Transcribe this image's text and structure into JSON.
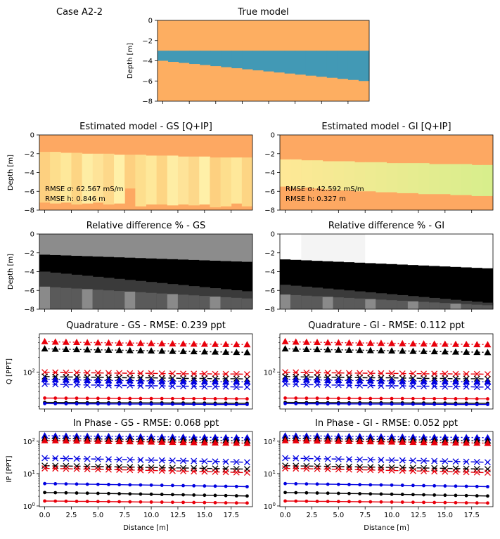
{
  "case_label": "Case A2-2",
  "colors": {
    "orange": "#fdae61",
    "blue": "#4299b5",
    "red": "#e8000b",
    "black": "#000000",
    "bluecurve": "#0000e0"
  },
  "chart_data": [
    {
      "id": "true",
      "type": "heatmap",
      "title": "True model",
      "ylabel": "Depth [m]",
      "yticks": [
        "0",
        "−2",
        "−4",
        "−6",
        "−8"
      ],
      "ylim": [
        -8,
        0
      ],
      "xlim": [
        -0.5,
        19.5
      ],
      "layer_top": -3.0,
      "layer_bottom_start": -4.0,
      "layer_bottom_end": -6.0
    },
    {
      "id": "gs-est",
      "type": "heatmap",
      "title": "Estimated model - GS [Q+IP]",
      "ylabel": "Depth [m]",
      "yticks": [
        "0",
        "−2",
        "−4",
        "−6",
        "−8"
      ],
      "rmse_sigma": "RMSE σ: 62.567 mS/m",
      "rmse_h": "RMSE h: 0.846 m",
      "layer_top": [
        -1.8,
        -1.8,
        -1.9,
        -1.9,
        -2.0,
        -2.0,
        -2.0,
        -2.1,
        -2.1,
        -2.1,
        -2.2,
        -2.2,
        -2.2,
        -2.3,
        -2.3,
        -2.3,
        -2.4,
        -2.4,
        -2.4,
        -2.4
      ],
      "layer_bottom": [
        -7.2,
        -7.3,
        -7.2,
        -7.4,
        -7.3,
        -7.2,
        -7.4,
        -7.3,
        -5.7,
        -7.6,
        -7.4,
        -7.4,
        -7.5,
        -7.4,
        -7.5,
        -7.4,
        -7.7,
        -7.6,
        -7.3,
        -7.6
      ]
    },
    {
      "id": "gi-est",
      "type": "heatmap",
      "title": "Estimated model - GI [Q+IP]",
      "rmse_sigma": "RMSE σ: 42.592 mS/m",
      "rmse_h": "RMSE h: 0.327 m",
      "layer_top": [
        -2.6,
        -2.6,
        -2.7,
        -2.7,
        -2.8,
        -2.8,
        -2.8,
        -2.9,
        -2.9,
        -2.9,
        -3.0,
        -3.0,
        -3.0,
        -3.0,
        -3.1,
        -3.1,
        -3.1,
        -3.1,
        -3.2,
        -3.2
      ],
      "layer_bottom": [
        -5.5,
        -5.7,
        -5.6,
        -5.7,
        -5.8,
        -5.9,
        -5.9,
        -6.0,
        -6.0,
        -6.1,
        -6.1,
        -6.2,
        -6.2,
        -6.3,
        -6.3,
        -6.3,
        -6.4,
        -6.4,
        -6.5,
        -6.5
      ]
    },
    {
      "id": "gs-diff",
      "type": "heatmap",
      "title": "Relative difference % - GS",
      "ylabel": "Depth [m]",
      "yticks": [
        "0",
        "−2",
        "−4",
        "−6",
        "−8"
      ]
    },
    {
      "id": "gi-diff",
      "type": "heatmap",
      "title": "Relative difference % - GI"
    },
    {
      "id": "gs-q",
      "type": "line",
      "title": "Quadrature - GS - RMSE: 0.239 ppt",
      "ylabel": "Q [PPT]",
      "yscale": "log",
      "ylim": [
        18,
        600
      ],
      "ytick_value": 100,
      "ytick_label": "10",
      "ytick_exp": "2"
    },
    {
      "id": "gi-q",
      "type": "line",
      "title": "Quadrature - GI - RMSE: 0.112 ppt",
      "yscale": "log",
      "ylim": [
        18,
        600
      ],
      "ytick_value": 100,
      "ytick_label": "10",
      "ytick_exp": "2"
    },
    {
      "id": "gs-ip",
      "type": "line",
      "title": "In Phase - GS - RMSE: 0.068 ppt",
      "ylabel": "IP [PPT]",
      "xlabel": "Distance [m]",
      "yscale": "log",
      "ylim": [
        0.95,
        200
      ],
      "yticks": [
        {
          "v": 1,
          "b": "10",
          "e": "0"
        },
        {
          "v": 10,
          "b": "10",
          "e": "1"
        },
        {
          "v": 100,
          "b": "10",
          "e": "2"
        }
      ]
    },
    {
      "id": "gi-ip",
      "type": "line",
      "title": "In Phase - GI - RMSE: 0.052 ppt",
      "xlabel": "Distance [m]",
      "yscale": "log",
      "ylim": [
        0.95,
        200
      ],
      "yticks": [
        {
          "v": 1,
          "b": "10",
          "e": "0"
        },
        {
          "v": 10,
          "b": "10",
          "e": "1"
        },
        {
          "v": 100,
          "b": "10",
          "e": "2"
        }
      ]
    }
  ],
  "x_axis": {
    "xlim": [
      -0.5,
      19.5
    ],
    "ticks": [
      0,
      2.5,
      5,
      7.5,
      10,
      12.5,
      15,
      17.5
    ],
    "labels": [
      "0.0",
      "2.5",
      "5.0",
      "7.5",
      "10.0",
      "12.5",
      "15.0",
      "17.5"
    ]
  },
  "q_series": {
    "x": [
      0,
      1,
      2,
      3,
      4,
      5,
      6,
      7,
      8,
      9,
      10,
      11,
      12,
      13,
      14,
      15,
      16,
      17,
      18,
      19
    ],
    "red_triangle": [
      420,
      412,
      408,
      405,
      400,
      398,
      395,
      392,
      390,
      388,
      385,
      383,
      380,
      378,
      375,
      373,
      370,
      368,
      366,
      364
    ],
    "black_triangle": [
      300,
      295,
      292,
      290,
      287,
      284,
      282,
      280,
      277,
      275,
      272,
      270,
      268,
      266,
      263,
      261,
      259,
      257,
      255,
      253
    ],
    "red_x": [
      100,
      99,
      98,
      98,
      97,
      97,
      96,
      96,
      95,
      95,
      95,
      94,
      94,
      93,
      93,
      93,
      92,
      92,
      92,
      91
    ],
    "black_x": [
      82,
      81,
      80,
      80,
      79,
      79,
      78,
      78,
      77,
      77,
      77,
      76,
      76,
      75,
      75,
      75,
      74,
      74,
      74,
      73
    ],
    "blue_triangle": [
      72,
      71,
      70,
      70,
      69,
      69,
      68,
      68,
      68,
      67,
      67,
      66,
      66,
      66,
      65,
      65,
      65,
      64,
      64,
      64
    ],
    "blue_x": [
      58,
      57,
      56,
      56,
      55,
      55,
      54,
      54,
      54,
      53,
      53,
      53,
      52,
      52,
      52,
      51,
      51,
      51,
      50,
      50
    ],
    "red_dot": [
      30,
      29.9,
      29.8,
      29.8,
      29.7,
      29.6,
      29.6,
      29.5,
      29.4,
      29.4,
      29.3,
      29.3,
      29.2,
      29.2,
      29.1,
      29.1,
      29,
      29,
      28.9,
      28.9
    ],
    "black_dot": [
      24.5,
      24.4,
      24.3,
      24.3,
      24.2,
      24.2,
      24.1,
      24.1,
      24,
      24,
      23.9,
      23.9,
      23.8,
      23.8,
      23.7,
      23.7,
      23.6,
      23.6,
      23.5,
      23.5
    ],
    "blue_dot": [
      23.2,
      23.1,
      23,
      23,
      22.9,
      22.9,
      22.8,
      22.8,
      22.7,
      22.7,
      22.6,
      22.6,
      22.5,
      22.5,
      22.4,
      22.4,
      22.3,
      22.3,
      22.2,
      22.2
    ]
  },
  "ip_series": {
    "x": [
      0,
      1,
      2,
      3,
      4,
      5,
      6,
      7,
      8,
      9,
      10,
      11,
      12,
      13,
      14,
      15,
      16,
      17,
      18,
      19
    ],
    "blue_triangle": [
      148,
      147,
      146,
      145,
      144,
      143,
      142,
      141,
      140,
      139,
      138,
      137,
      136,
      135,
      134,
      133,
      132,
      131,
      130,
      129
    ],
    "black_triangle": [
      122,
      121,
      120,
      119,
      118,
      117,
      116,
      115,
      114,
      113,
      112,
      111,
      110,
      109,
      108,
      107,
      106,
      105,
      104,
      103
    ],
    "red_triangle": [
      106,
      105,
      104,
      103,
      102,
      101,
      100,
      99,
      98,
      97,
      96,
      95,
      94,
      93,
      92,
      91,
      90,
      89,
      88,
      87
    ],
    "blue_x": [
      30,
      29.6,
      29.2,
      28.8,
      28.4,
      28,
      27.6,
      27.2,
      26.8,
      26.4,
      26,
      25.6,
      25.2,
      24.8,
      24.4,
      24,
      23.6,
      23.2,
      22.8,
      22.4
    ],
    "black_x": [
      17.5,
      17.3,
      17.1,
      16.9,
      16.7,
      16.5,
      16.3,
      16.1,
      15.9,
      15.7,
      15.5,
      15.3,
      15.1,
      14.9,
      14.7,
      14.5,
      14.3,
      14.1,
      13.9,
      13.7
    ],
    "red_x": [
      14.5,
      14.3,
      14.1,
      13.9,
      13.7,
      13.5,
      13.3,
      13.1,
      12.9,
      12.7,
      12.5,
      12.3,
      12.1,
      11.9,
      11.7,
      11.5,
      11.3,
      11.1,
      10.9,
      10.7
    ],
    "blue_dot": [
      4.9,
      4.85,
      4.8,
      4.75,
      4.7,
      4.65,
      4.6,
      4.55,
      4.5,
      4.45,
      4.4,
      4.35,
      4.3,
      4.25,
      4.2,
      4.15,
      4.1,
      4.05,
      4,
      3.95
    ],
    "black_dot": [
      2.6,
      2.57,
      2.54,
      2.51,
      2.48,
      2.45,
      2.42,
      2.39,
      2.36,
      2.33,
      2.3,
      2.27,
      2.24,
      2.21,
      2.18,
      2.15,
      2.12,
      2.09,
      2.06,
      2.03
    ],
    "red_dot": [
      1.42,
      1.41,
      1.4,
      1.39,
      1.38,
      1.37,
      1.36,
      1.35,
      1.34,
      1.33,
      1.32,
      1.31,
      1.3,
      1.29,
      1.28,
      1.27,
      1.26,
      1.25,
      1.24,
      1.23
    ]
  }
}
